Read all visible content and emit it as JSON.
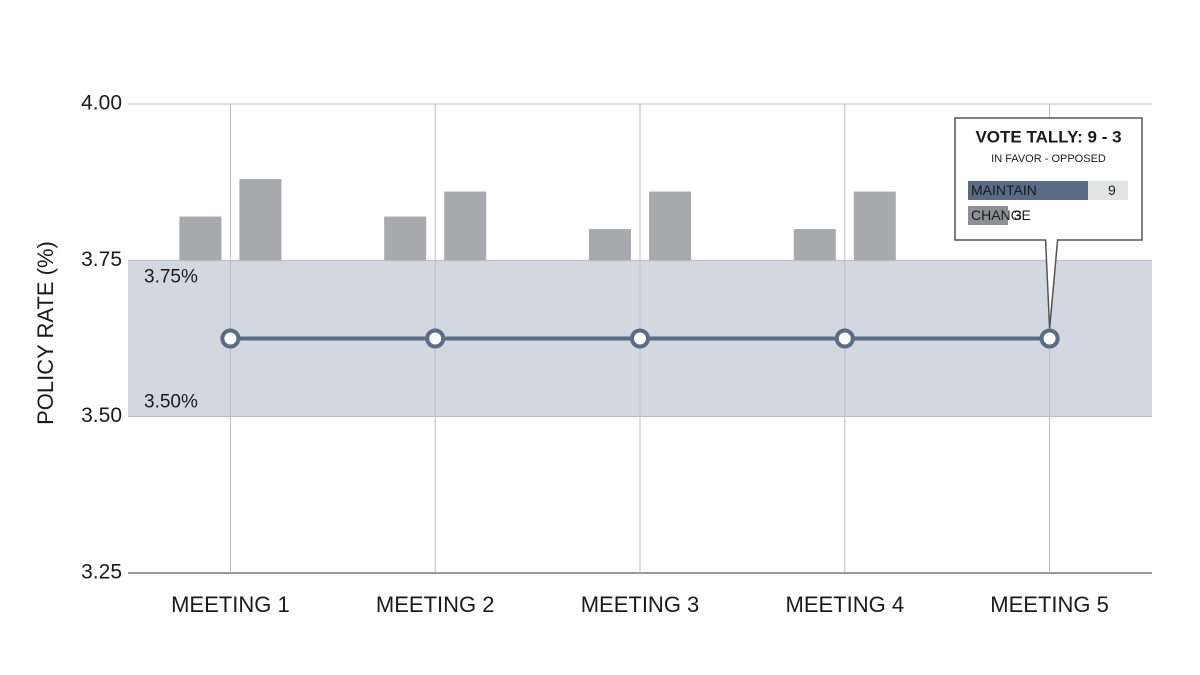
{
  "chart_data": {
    "type": "bar",
    "y_label": "POLICY RATE (%)",
    "categories": [
      "MEETING 1",
      "MEETING 2",
      "MEETING 3",
      "MEETING 4",
      "MEETING 5"
    ],
    "series": [
      {
        "type": "bar",
        "color": "#a7a9ac",
        "values": [
          3.82,
          3.82,
          3.8,
          3.8,
          null
        ]
      },
      {
        "type": "bar",
        "color": "#a7a9ac",
        "values": [
          3.88,
          3.86,
          3.86,
          3.86,
          null
        ]
      },
      {
        "type": "line",
        "color": "#5a6b86",
        "values": [
          3.625,
          3.625,
          3.625,
          3.625,
          3.625
        ]
      }
    ],
    "band": {
      "range": [
        3.5,
        3.75
      ],
      "labels": [
        "3.50%",
        "3.75%"
      ],
      "color": "#d3d7e0"
    },
    "ylim": [
      3.25,
      4.0
    ],
    "yticks": [
      3.25,
      {
        "value": 3.5,
        "label": "3.50"
      },
      3.75,
      {
        "value": 4.0,
        "label": "4.00"
      }
    ],
    "grid": true,
    "annotation": {
      "title": "VOTE TALLY: 9 - 3",
      "subtitle": "IN FAVOR - OPPOSED",
      "items": [
        {
          "label": "MAINTAIN",
          "value": 9,
          "color": "#5a6b86"
        },
        {
          "label": "CHANGE",
          "value": 3,
          "color": "#8e9093"
        }
      ]
    }
  }
}
